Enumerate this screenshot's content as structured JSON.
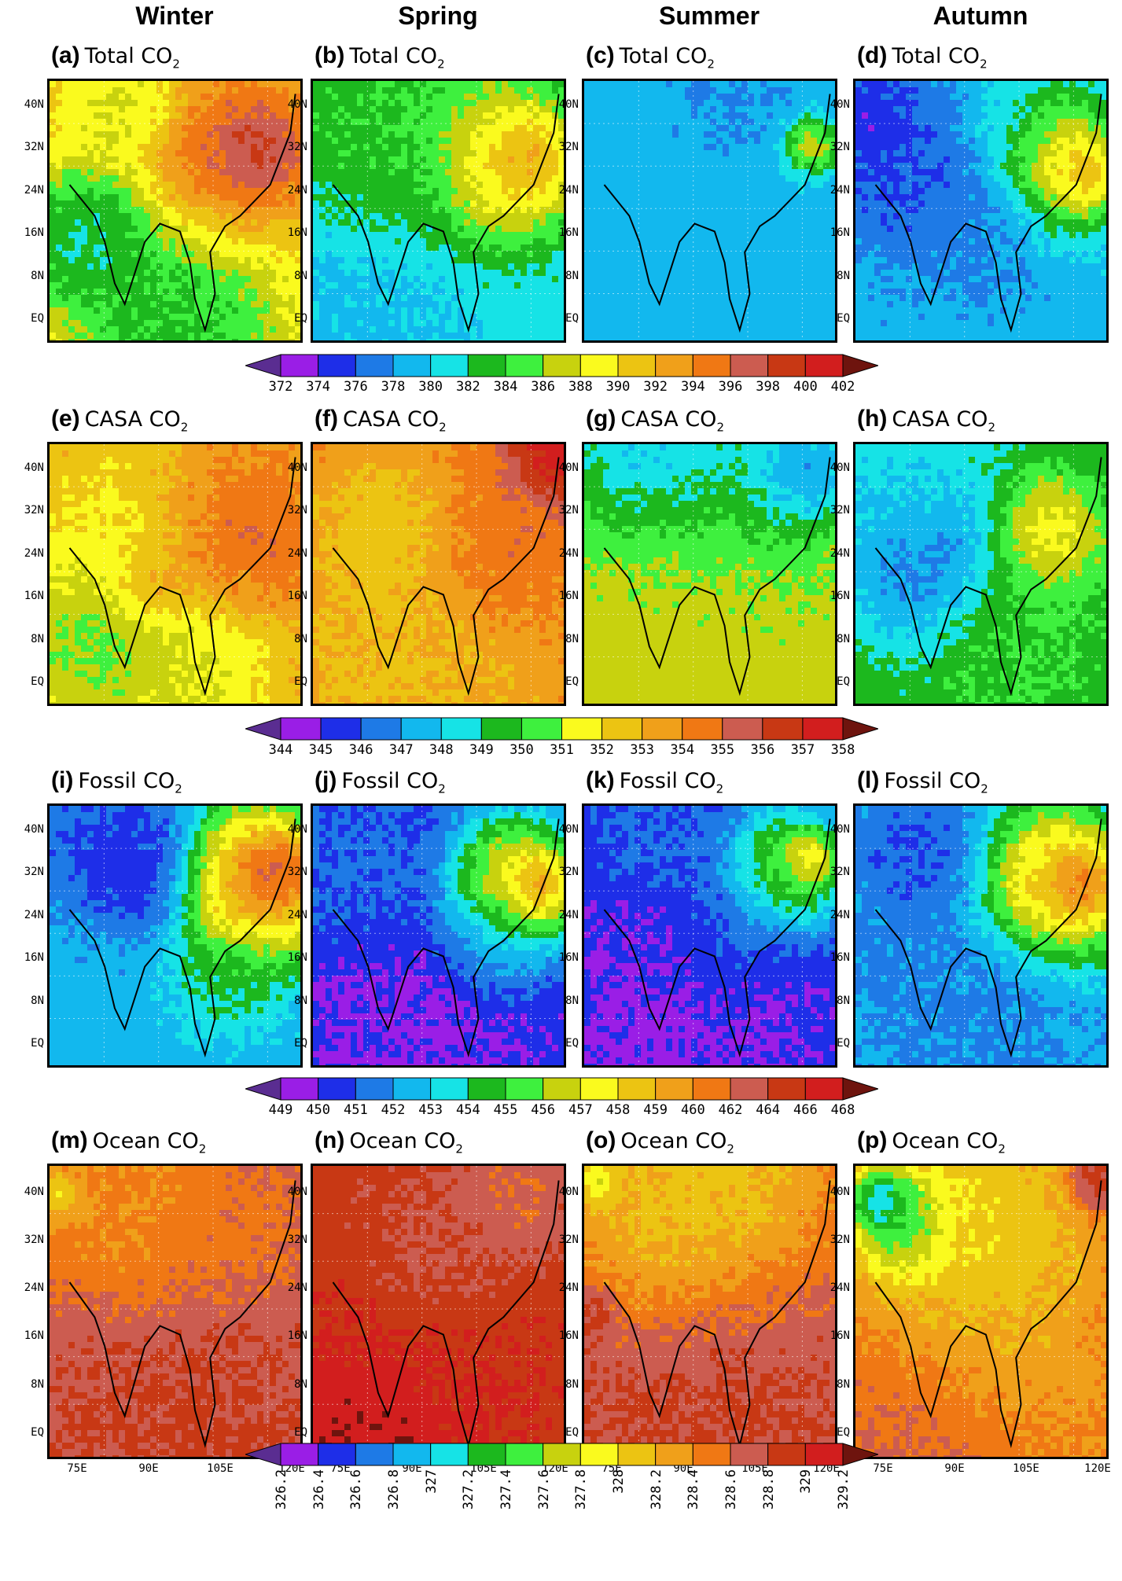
{
  "seasons": [
    "Winter",
    "Spring",
    "Summer",
    "Autumn"
  ],
  "lat_labels": [
    "40N",
    "32N",
    "24N",
    "16N",
    "8N",
    "EQ"
  ],
  "lon_labels": [
    "75E",
    "90E",
    "105E",
    "120E"
  ],
  "rows": [
    {
      "panels": [
        {
          "letter": "(a)",
          "name": "Total CO",
          "sub": "2"
        },
        {
          "letter": "(b)",
          "name": "Total CO",
          "sub": "2"
        },
        {
          "letter": "(c)",
          "name": "Total CO",
          "sub": "2"
        },
        {
          "letter": "(d)",
          "name": "Total CO",
          "sub": "2"
        }
      ],
      "colorbar": [
        "372",
        "374",
        "376",
        "378",
        "380",
        "382",
        "384",
        "386",
        "388",
        "390",
        "392",
        "394",
        "396",
        "398",
        "400",
        "402"
      ]
    },
    {
      "panels": [
        {
          "letter": "(e)",
          "name": "CASA CO",
          "sub": "2"
        },
        {
          "letter": "(f)",
          "name": "CASA CO",
          "sub": "2"
        },
        {
          "letter": "(g)",
          "name": "CASA CO",
          "sub": "2"
        },
        {
          "letter": "(h)",
          "name": "CASA CO",
          "sub": "2"
        }
      ],
      "colorbar": [
        "344",
        "345",
        "346",
        "347",
        "348",
        "349",
        "350",
        "351",
        "352",
        "353",
        "354",
        "355",
        "356",
        "357",
        "358"
      ]
    },
    {
      "panels": [
        {
          "letter": "(i)",
          "name": "Fossil CO",
          "sub": "2"
        },
        {
          "letter": "(j)",
          "name": "Fossil CO",
          "sub": "2"
        },
        {
          "letter": "(k)",
          "name": "Fossil CO",
          "sub": "2"
        },
        {
          "letter": "(l)",
          "name": "Fossil CO",
          "sub": "2"
        }
      ],
      "colorbar": [
        "449",
        "450",
        "451",
        "452",
        "453",
        "454",
        "455",
        "456",
        "457",
        "458",
        "459",
        "460",
        "462",
        "464",
        "466",
        "468"
      ]
    },
    {
      "panels": [
        {
          "letter": "(m)",
          "name": "Ocean CO",
          "sub": "2"
        },
        {
          "letter": "(n)",
          "name": "Ocean CO",
          "sub": "2"
        },
        {
          "letter": "(o)",
          "name": "Ocean CO",
          "sub": "2"
        },
        {
          "letter": "(p)",
          "name": "Ocean CO",
          "sub": "2"
        }
      ],
      "colorbar": [
        "326.2",
        "326.4",
        "326.6",
        "326.8",
        "327",
        "327.2",
        "327.4",
        "327.6",
        "327.8",
        "328",
        "328.2",
        "328.4",
        "328.6",
        "328.8",
        "329",
        "329.2"
      ]
    }
  ],
  "palette": [
    "#5a2d91",
    "#9a1ee6",
    "#1e2ee8",
    "#1e7ae6",
    "#12b8ee",
    "#16e3e6",
    "#1cb81e",
    "#3ef03e",
    "#c8d20e",
    "#fafa1e",
    "#ecc412",
    "#f0a01a",
    "#f07814",
    "#cc5c50",
    "#c83814",
    "#d21e1e",
    "#6e140e"
  ],
  "panel_maps": [
    {
      "base": 10,
      "blobs": [
        [
          0.72,
          0.28,
          0.3,
          13
        ],
        [
          0.82,
          0.25,
          0.16,
          15
        ],
        [
          0.3,
          0.1,
          0.22,
          8
        ],
        [
          0.5,
          0.95,
          0.4,
          5
        ],
        [
          0.15,
          0.6,
          0.25,
          4
        ]
      ]
    },
    {
      "base": 5,
      "blobs": [
        [
          0.3,
          0.15,
          0.4,
          7
        ],
        [
          0.75,
          0.3,
          0.28,
          11
        ],
        [
          0.85,
          0.3,
          0.14,
          12
        ],
        [
          0.3,
          0.35,
          0.25,
          6
        ],
        [
          0.15,
          0.9,
          0.4,
          4
        ]
      ]
    },
    {
      "base": 4,
      "blobs": [
        [
          0.6,
          0.05,
          0.2,
          3
        ],
        [
          0.9,
          0.25,
          0.1,
          10
        ],
        [
          0.5,
          0.6,
          0.5,
          4
        ]
      ]
    },
    {
      "base": 4,
      "blobs": [
        [
          0.2,
          0.3,
          0.35,
          2
        ],
        [
          0.05,
          0.15,
          0.15,
          1
        ],
        [
          0.8,
          0.3,
          0.25,
          10
        ],
        [
          0.9,
          0.35,
          0.12,
          12
        ],
        [
          0.5,
          0.55,
          0.25,
          3
        ],
        [
          0.6,
          0.1,
          0.2,
          5
        ]
      ]
    },
    {
      "base": 11,
      "blobs": [
        [
          0.3,
          0.3,
          0.35,
          9
        ],
        [
          0.7,
          0.35,
          0.3,
          13
        ],
        [
          0.2,
          0.75,
          0.35,
          6
        ],
        [
          0.6,
          0.85,
          0.3,
          8
        ],
        [
          0.4,
          0.55,
          0.15,
          12
        ]
      ]
    },
    {
      "base": 12,
      "blobs": [
        [
          0.5,
          0.8,
          0.5,
          10
        ],
        [
          0.3,
          0.95,
          0.45,
          10
        ],
        [
          0.7,
          0.45,
          0.3,
          13
        ],
        [
          0.95,
          0.05,
          0.15,
          16
        ],
        [
          0.3,
          0.35,
          0.3,
          9
        ]
      ]
    },
    {
      "base": 8,
      "blobs": [
        [
          0.5,
          0.15,
          0.4,
          4
        ],
        [
          0.3,
          0.05,
          0.3,
          3
        ],
        [
          0.45,
          0.35,
          0.35,
          9
        ],
        [
          0.85,
          0.1,
          0.2,
          2
        ]
      ]
    },
    {
      "base": 6,
      "blobs": [
        [
          0.3,
          0.45,
          0.3,
          2
        ],
        [
          0.15,
          0.25,
          0.25,
          4
        ],
        [
          0.75,
          0.35,
          0.2,
          10
        ],
        [
          0.6,
          0.7,
          0.3,
          7
        ],
        [
          0.3,
          0.05,
          0.3,
          5
        ]
      ]
    },
    {
      "base": 4,
      "blobs": [
        [
          0.35,
          0.25,
          0.22,
          1
        ],
        [
          0.25,
          0.15,
          0.3,
          2
        ],
        [
          0.8,
          0.3,
          0.28,
          13
        ],
        [
          0.9,
          0.25,
          0.14,
          15
        ],
        [
          0.15,
          0.7,
          0.3,
          4
        ],
        [
          0.7,
          0.65,
          0.2,
          6
        ]
      ]
    },
    {
      "base": 2,
      "blobs": [
        [
          0.4,
          0.85,
          0.45,
          1
        ],
        [
          0.8,
          0.3,
          0.25,
          11
        ],
        [
          0.9,
          0.3,
          0.12,
          13
        ],
        [
          0.2,
          0.25,
          0.3,
          3
        ],
        [
          0.7,
          0.55,
          0.2,
          4
        ]
      ]
    },
    {
      "base": 2,
      "blobs": [
        [
          0.4,
          0.85,
          0.5,
          1
        ],
        [
          0.8,
          0.25,
          0.22,
          9
        ],
        [
          0.9,
          0.2,
          0.1,
          11
        ],
        [
          0.3,
          0.05,
          0.25,
          3
        ],
        [
          0.6,
          0.5,
          0.25,
          3
        ]
      ]
    },
    {
      "base": 4,
      "blobs": [
        [
          0.25,
          0.2,
          0.25,
          2
        ],
        [
          0.8,
          0.3,
          0.27,
          12
        ],
        [
          0.9,
          0.3,
          0.12,
          14
        ],
        [
          0.5,
          0.85,
          0.4,
          3
        ],
        [
          0.2,
          0.6,
          0.25,
          3
        ]
      ]
    },
    {
      "base": 13,
      "blobs": [
        [
          0.3,
          0.15,
          0.35,
          11
        ],
        [
          0.7,
          0.2,
          0.3,
          12
        ],
        [
          0.5,
          0.95,
          0.5,
          14
        ],
        [
          0.05,
          0.1,
          0.08,
          8
        ]
      ]
    },
    {
      "base": 14,
      "blobs": [
        [
          0.5,
          0.3,
          0.3,
          13
        ],
        [
          0.4,
          0.85,
          0.5,
          15
        ],
        [
          0.2,
          0.98,
          0.3,
          16
        ],
        [
          0.8,
          0.1,
          0.2,
          12
        ]
      ]
    },
    {
      "base": 13,
      "blobs": [
        [
          0.5,
          0.1,
          0.45,
          9
        ],
        [
          0.3,
          0.25,
          0.3,
          10
        ],
        [
          0.05,
          0.05,
          0.08,
          7
        ],
        [
          0.05,
          0.5,
          0.08,
          15
        ],
        [
          0.5,
          0.75,
          0.5,
          14
        ]
      ]
    },
    {
      "base": 12,
      "blobs": [
        [
          0.1,
          0.12,
          0.1,
          2
        ],
        [
          0.2,
          0.2,
          0.18,
          4
        ],
        [
          0.5,
          0.22,
          0.4,
          9
        ],
        [
          0.45,
          0.55,
          0.35,
          10
        ],
        [
          0.3,
          0.85,
          0.35,
          13
        ],
        [
          0.85,
          0.7,
          0.25,
          11
        ],
        [
          0.95,
          0.05,
          0.1,
          15
        ]
      ]
    }
  ]
}
